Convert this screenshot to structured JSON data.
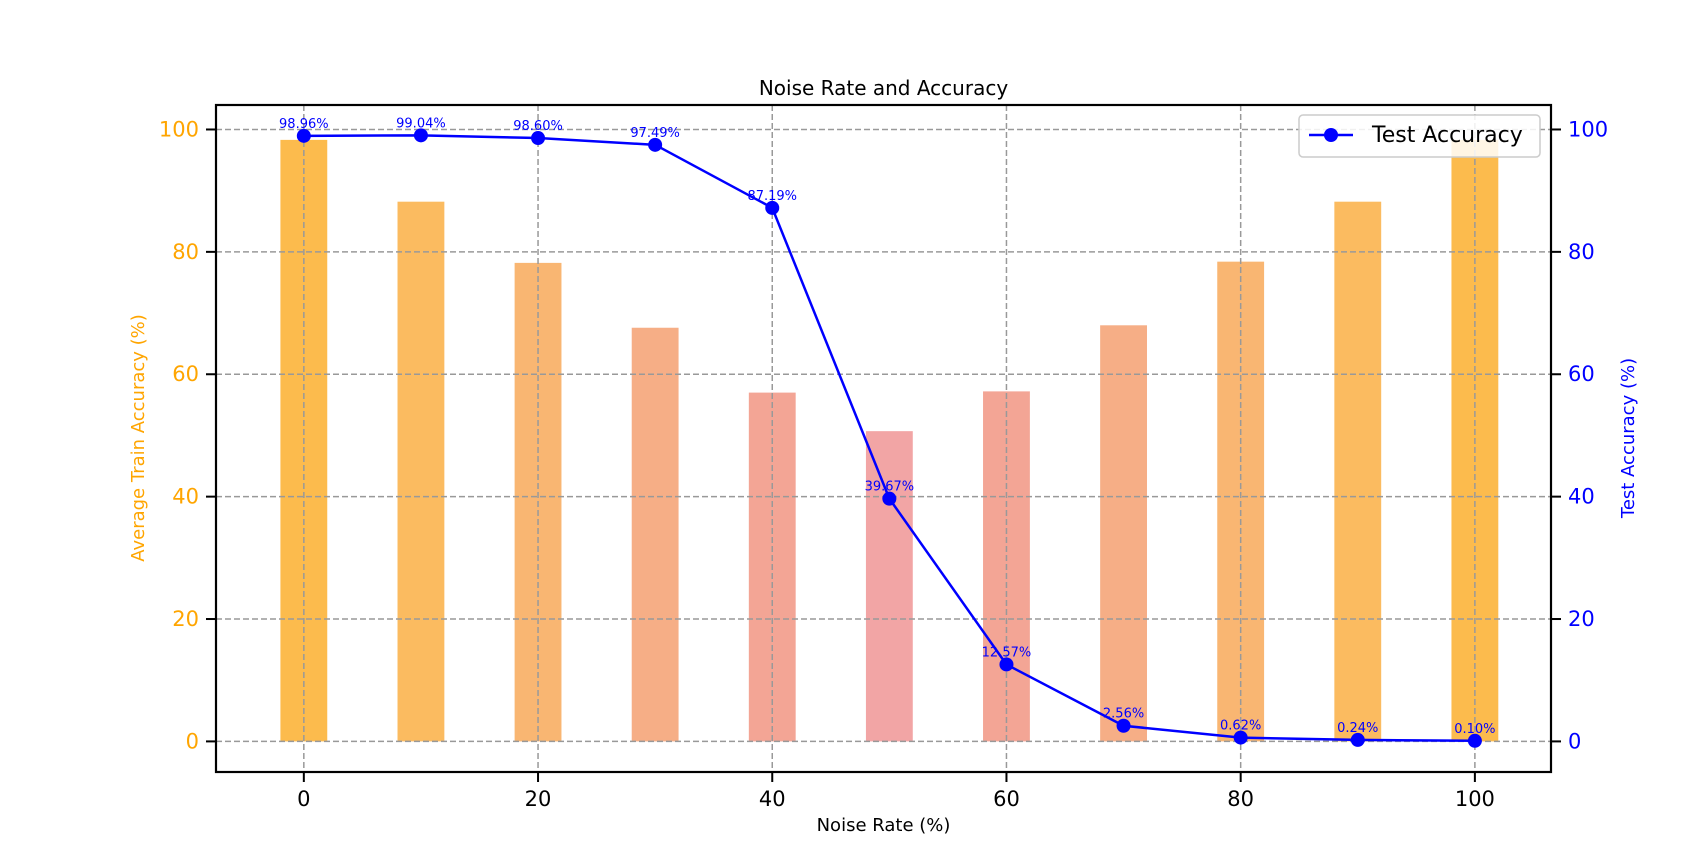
{
  "chart_data": {
    "type": "bar+line",
    "title": "Noise Rate and Accuracy",
    "xlabel": "Noise Rate (%)",
    "ylabel_left": "Average Train Accuracy (%)",
    "ylabel_right": "Test Accuracy (%)",
    "x": [
      0,
      10,
      20,
      30,
      40,
      50,
      60,
      70,
      80,
      90,
      100
    ],
    "xlim": [
      -7.5,
      106.5
    ],
    "xticks": [
      "0",
      "20",
      "40",
      "60",
      "80",
      "100"
    ],
    "ylim_left": [
      -5,
      104
    ],
    "ylim_right": [
      -5,
      104
    ],
    "yticks_left": [
      "0",
      "20",
      "40",
      "60",
      "80",
      "100"
    ],
    "yticks_right": [
      "0",
      "20",
      "40",
      "60",
      "80",
      "100"
    ],
    "grid": true,
    "legend_position": "top-right",
    "series": [
      {
        "kind": "bar",
        "axis": "left",
        "values": [
          98.3,
          88.2,
          78.2,
          67.6,
          57.0,
          50.7,
          57.2,
          68.0,
          78.4,
          88.2,
          98.3
        ],
        "colors": [
          "#fcbb4d",
          "#fbbb60",
          "#f9b672",
          "#f6ae86",
          "#f3a595",
          "#f2a5a5",
          "#f3a595",
          "#f6ae86",
          "#f9b672",
          "#fbbb60",
          "#fcbb4d"
        ]
      },
      {
        "kind": "line",
        "axis": "right",
        "name": "Test Accuracy",
        "color": "#0000ff",
        "values": [
          98.96,
          99.04,
          98.6,
          97.49,
          87.19,
          39.67,
          12.57,
          2.56,
          0.62,
          0.24,
          0.1
        ],
        "labels": [
          "98.96%",
          "99.04%",
          "98.60%",
          "97.49%",
          "87.19%",
          "39.67%",
          "12.57%",
          "2.56%",
          "0.62%",
          "0.24%",
          "0.10%"
        ]
      }
    ],
    "colors": {
      "left_axis": "#ffa500",
      "right_axis": "#0000ff",
      "grid": "#999999"
    }
  }
}
